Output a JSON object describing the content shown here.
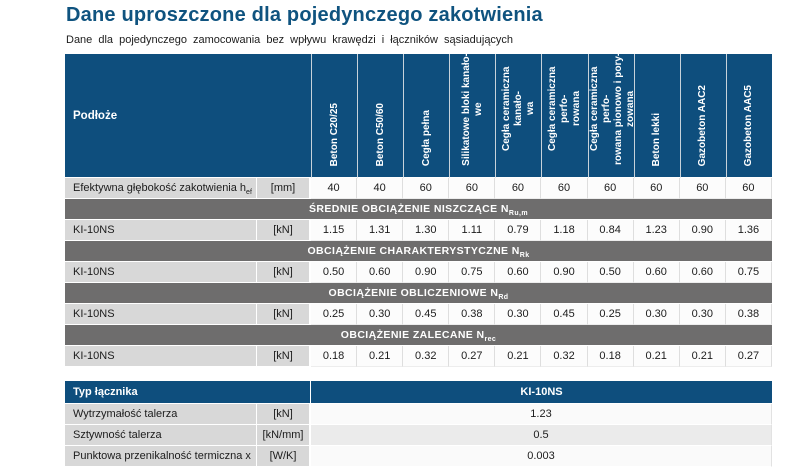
{
  "page": {
    "title": "Dane uproszczone dla pojedynczego zakotwienia",
    "subtitle": "Dane dla pojedynczego zamocowania bez wpływu krawędzi i łączników sąsiadujących"
  },
  "theme": {
    "header_blue": "#0E4E7D",
    "band_gray": "#6E6D6D",
    "label_gray": "#D8D8D8",
    "value_bg": "#FCFCFC",
    "stripe_gray": "#EBEBEB",
    "title_color": "#0F537F"
  },
  "main_table": {
    "substrate_label": "Podłoże",
    "columns": [
      "Beton C20/25",
      "Beton C50/60",
      "Cegła pełna",
      "Silikatowe bloki kanało-\nwe",
      "Cegła ceramiczna kanało-\nwa",
      "Cegła ceramiczna perfo-\nrowana",
      "Cegła ceramiczna perfo-\nrowana pionowo i pory-\nzowana",
      "Beton lekki",
      "Gazobeton AAC2",
      "Gazobeton AAC5"
    ],
    "embedment": {
      "label": "Efektywna głębokość zakotwienia h",
      "sub": "ef",
      "unit": "[mm]",
      "values": [
        "40",
        "40",
        "60",
        "60",
        "60",
        "60",
        "60",
        "60",
        "60",
        "60"
      ]
    },
    "sections": [
      {
        "band": "ŚREDNIE OBCIĄŻENIE NISZCZĄCE N",
        "band_sub": "Ru,m",
        "row": "KI-10NS",
        "unit": "[kN]",
        "values": [
          "1.15",
          "1.31",
          "1.30",
          "1.11",
          "0.79",
          "1.18",
          "0.84",
          "1.23",
          "0.90",
          "1.36"
        ]
      },
      {
        "band": "OBCIĄŻENIE CHARAKTERYSTYCZNE N",
        "band_sub": "Rk",
        "row": "KI-10NS",
        "unit": "[kN]",
        "values": [
          "0.50",
          "0.60",
          "0.90",
          "0.75",
          "0.60",
          "0.90",
          "0.50",
          "0.60",
          "0.60",
          "0.75"
        ]
      },
      {
        "band": "OBCIĄŻENIE OBLICZENIOWE N",
        "band_sub": "Rd",
        "row": "KI-10NS",
        "unit": "[kN]",
        "values": [
          "0.25",
          "0.30",
          "0.45",
          "0.38",
          "0.30",
          "0.45",
          "0.25",
          "0.30",
          "0.30",
          "0.38"
        ]
      },
      {
        "band": "OBCIĄŻENIE ZALECANE N",
        "band_sub": "rec",
        "row": "KI-10NS",
        "unit": "[kN]",
        "values": [
          "0.18",
          "0.21",
          "0.32",
          "0.27",
          "0.21",
          "0.32",
          "0.18",
          "0.21",
          "0.21",
          "0.27"
        ]
      }
    ]
  },
  "fastener_table": {
    "type_label": "Typ łącznika",
    "type_value": "KI-10NS",
    "rows": [
      {
        "label": "Wytrzymałość talerza",
        "unit": "[kN]",
        "value": "1.23"
      },
      {
        "label": "Sztywność talerza",
        "unit": "[kN/mm]",
        "value": "0.5"
      },
      {
        "label": "Punktowa przenikalność termiczna x",
        "unit": "[W/K]",
        "value": "0.003"
      }
    ]
  }
}
